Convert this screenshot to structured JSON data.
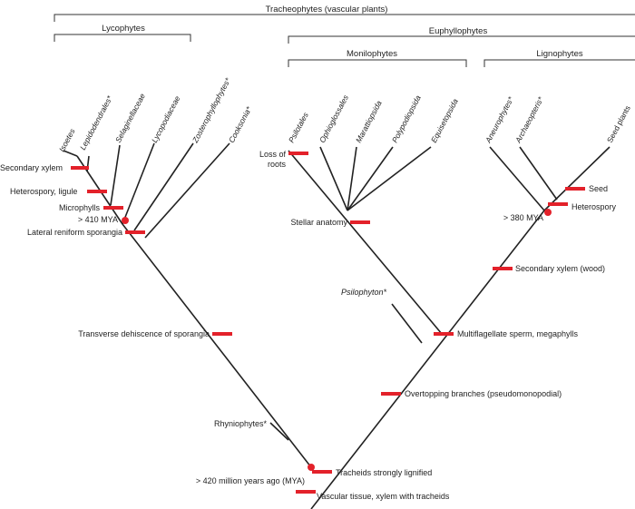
{
  "clades": {
    "tracheophytes": "Tracheophytes (vascular plants)",
    "lycophytes": "Lycophytes",
    "euphyllophytes": "Euphyllophytes",
    "monilophytes": "Monilophytes",
    "lignophytes": "Lignophytes"
  },
  "taxa": {
    "isoetes": "Isoetes",
    "lepidodendrales": "Lepidodendrales*",
    "selaginellaceae": "Selaginellaceae",
    "lycopodiaceae": "Lycopodiaceae",
    "zosterophyllophytes": "Zosterophyllophytes*",
    "cooksonia": "Cooksonia*",
    "psilotales": "Psilotales",
    "ophioglossales": "Ophioglossales",
    "marattiopsida": "Marattiopsida",
    "polypodiopsida": "Polypodiopsida",
    "equisetopsida": "Equisetopsida",
    "aneurophytes": "Aneurophytes*",
    "archaeopteris": "Archaeopteris*",
    "seed_plants": "Seed plants",
    "psilophyton": "Psilophyton*",
    "rhyniophytes": "Rhyniophytes*"
  },
  "characters": {
    "secondary_xylem": "Secondary xylem",
    "heterospory_ligule": "Heterospory, ligule",
    "microphylls": "Microphylls",
    "mya_410": "> 410 MYA",
    "lateral_reniform": "Lateral reniform sporangia",
    "loss_of_roots_1": "Loss of",
    "loss_of_roots_2": "roots",
    "stellar_anatomy": "Stellar anatomy",
    "seed": "Seed",
    "heterospory": "Heterospory",
    "mya_380": "> 380 MYA",
    "secondary_xylem_wood": "Secondary xylem (wood)",
    "transverse_dehiscence": "Transverse dehiscence of sporangia",
    "multiflagellate": "Multiflagellate sperm, megaphylls",
    "overtopping": "Overtopping branches (pseudomonopodial)",
    "mya_420": "> 420 million years ago (MYA)",
    "tracheids_lignified": "Tracheids strongly lignified",
    "vascular_tissue": "Vascular tissue, xylem with tracheids"
  },
  "colors": {
    "synapomorphy_mark": "#e3212a",
    "lines": "#222222"
  }
}
